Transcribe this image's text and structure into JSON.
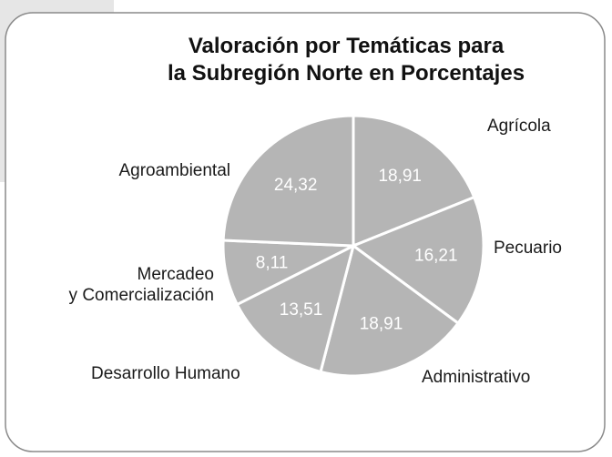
{
  "chart_data": {
    "type": "pie",
    "title": "Valoración por Temáticas para\nla Subregión Norte en Porcentajes",
    "categories": [
      "Agrícola",
      "Pecuario",
      "Administrativo",
      "Desarrollo Humano",
      "Mercadeo\ny Comercialización",
      "Agroambiental"
    ],
    "values": [
      18.91,
      16.21,
      18.91,
      13.51,
      8.11,
      24.32
    ],
    "value_labels": [
      "18,91",
      "16,21",
      "18,91",
      "13,51",
      "8,11",
      "24,32"
    ],
    "color": "#b5b5b5"
  }
}
